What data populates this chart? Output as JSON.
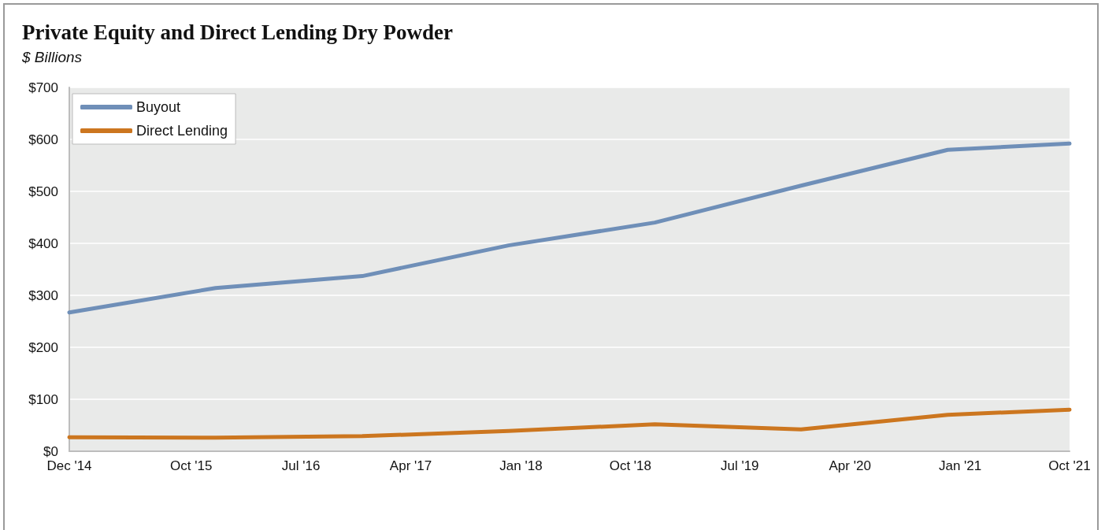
{
  "chart_data": {
    "type": "line",
    "title": "Private Equity and Direct Lending Dry Powder",
    "subtitle": "$ Billions",
    "x": [
      "2014-12",
      "2015-12",
      "2016-12",
      "2017-12",
      "2018-12",
      "2019-12",
      "2020-12",
      "2021-10"
    ],
    "series": [
      {
        "name": "Buyout",
        "color": "#6f8fb8",
        "values": [
          267,
          314,
          337,
          396,
          440,
          511,
          580,
          592
        ]
      },
      {
        "name": "Direct Lending",
        "color": "#cc761f",
        "values": [
          27,
          26,
          29,
          39,
          52,
          42,
          70,
          80
        ]
      }
    ],
    "xlim": [
      "2014-12",
      "2021-10"
    ],
    "xticks": [
      {
        "value": "2014-12",
        "label": "Dec '14"
      },
      {
        "value": "2015-10",
        "label": "Oct '15"
      },
      {
        "value": "2016-07",
        "label": "Jul '16"
      },
      {
        "value": "2017-04",
        "label": "Apr '17"
      },
      {
        "value": "2018-01",
        "label": "Jan '18"
      },
      {
        "value": "2018-10",
        "label": "Oct '18"
      },
      {
        "value": "2019-07",
        "label": "Jul '19"
      },
      {
        "value": "2020-04",
        "label": "Apr '20"
      },
      {
        "value": "2021-01",
        "label": "Jan '21"
      },
      {
        "value": "2021-10",
        "label": "Oct '21"
      }
    ],
    "ylim": [
      0,
      700
    ],
    "yticks": [
      {
        "value": 0,
        "label": "$0"
      },
      {
        "value": 100,
        "label": "$100"
      },
      {
        "value": 200,
        "label": "$200"
      },
      {
        "value": 300,
        "label": "$300"
      },
      {
        "value": 400,
        "label": "$400"
      },
      {
        "value": 500,
        "label": "$500"
      },
      {
        "value": 600,
        "label": "$600"
      },
      {
        "value": 700,
        "label": "$700"
      }
    ],
    "grid": "y",
    "legend": "top left",
    "marker": "none",
    "line_style": "solid"
  }
}
